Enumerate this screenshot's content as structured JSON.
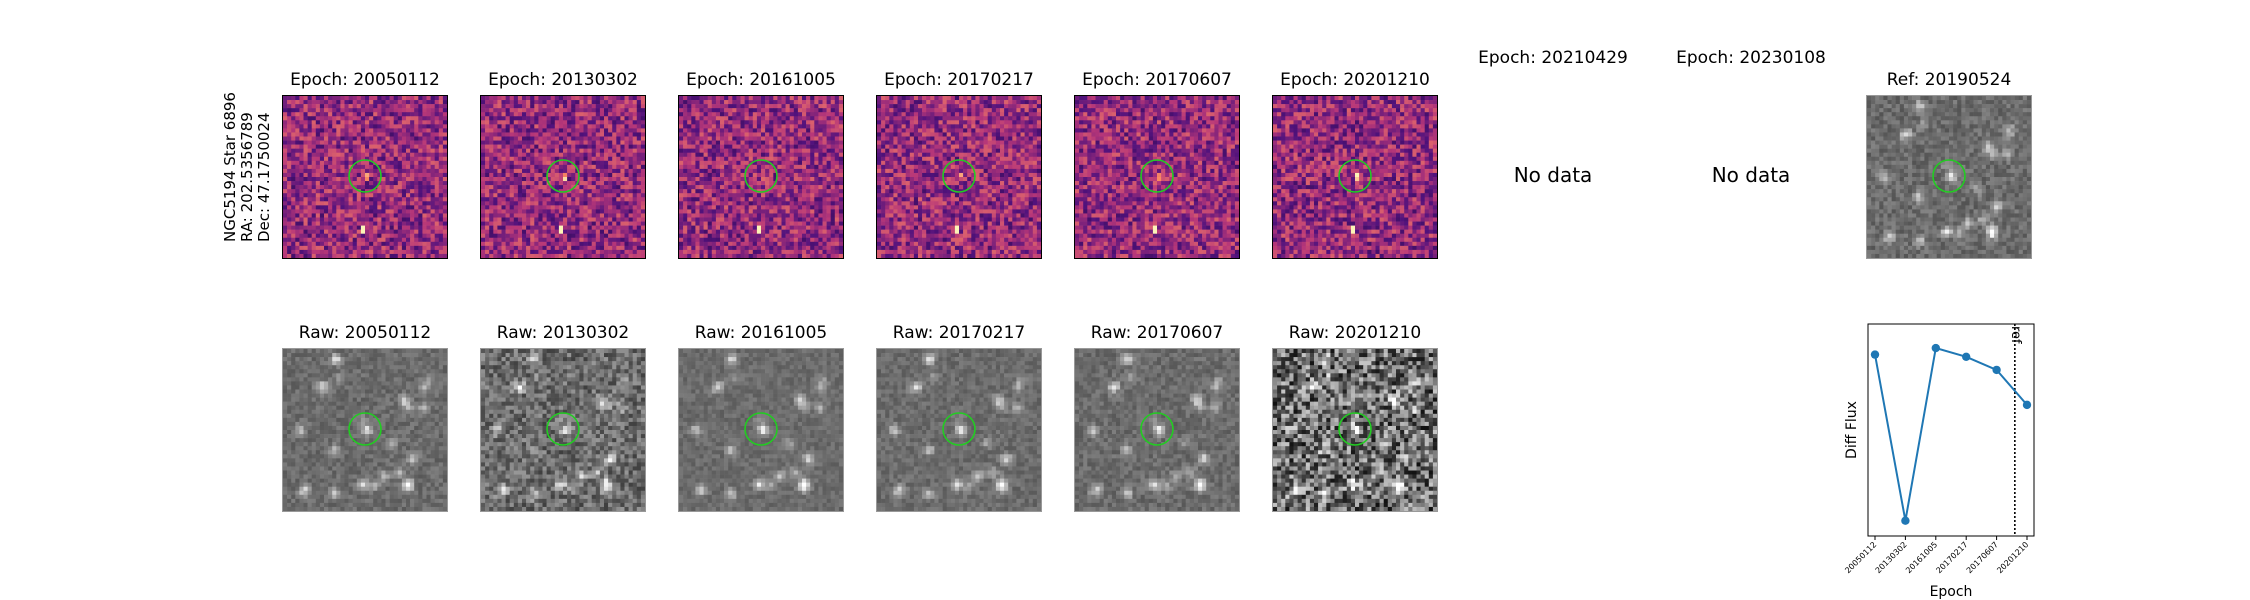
{
  "star_label": {
    "name": "NGC5194 Star 6896",
    "ra": "RA: 202.5356789",
    "dec": "Dec: 47.1750024"
  },
  "top_row": [
    {
      "title": "Epoch: 20050112",
      "has_data": true,
      "style": "diff",
      "seed": 11
    },
    {
      "title": "Epoch: 20130302",
      "has_data": true,
      "style": "diff",
      "seed": 23
    },
    {
      "title": "Epoch: 20161005",
      "has_data": true,
      "style": "diff",
      "seed": 37
    },
    {
      "title": "Epoch: 20170217",
      "has_data": true,
      "style": "diff",
      "seed": 41
    },
    {
      "title": "Epoch: 20170607",
      "has_data": true,
      "style": "diff",
      "seed": 53
    },
    {
      "title": "Epoch: 20201210",
      "has_data": true,
      "style": "diff",
      "seed": 67
    },
    {
      "title": "Epoch: 20210429",
      "has_data": false,
      "no_data_text": "No data"
    },
    {
      "title": "Epoch: 20230108",
      "has_data": false,
      "no_data_text": "No data"
    },
    {
      "title": "Ref: 20190524",
      "has_data": true,
      "style": "ref",
      "seed": 79
    }
  ],
  "bottom_row": [
    {
      "title": "Raw: 20050112",
      "seed": 101,
      "noise": 0.1
    },
    {
      "title": "Raw: 20130302",
      "seed": 113,
      "noise": 0.22
    },
    {
      "title": "Raw: 20161005",
      "seed": 127,
      "noise": 0.08
    },
    {
      "title": "Raw: 20170217",
      "seed": 131,
      "noise": 0.09
    },
    {
      "title": "Raw: 20170607",
      "seed": 137,
      "noise": 0.1
    },
    {
      "title": "Raw: 20201210",
      "seed": 149,
      "noise": 0.45
    }
  ],
  "colors": {
    "circle": "#22cc22",
    "line": "#1f77b4",
    "ref_line": "#000000"
  },
  "chart_data": {
    "type": "line",
    "x": [
      "20050112",
      "20130302",
      "20161005",
      "20170217",
      "20170607",
      "20201210"
    ],
    "values": [
      0.86,
      0.1,
      0.89,
      0.85,
      0.79,
      0.63
    ],
    "ylabel": "Diff Flux",
    "xlabel": "Epoch",
    "ylim": [
      0.03,
      1.0
    ],
    "ref_marker": {
      "label": "ref",
      "x_between": [
        "20170607",
        "20201210"
      ]
    },
    "grid": false
  }
}
